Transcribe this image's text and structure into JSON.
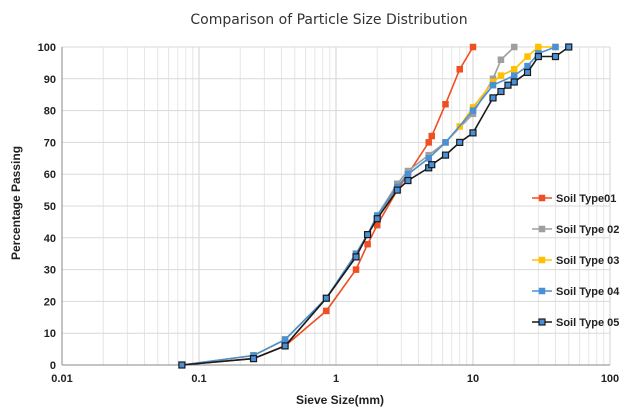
{
  "chart_data": {
    "type": "line",
    "title": "Comparison of Particle Size Distribution",
    "xlabel": "Sieve Size(mm)",
    "ylabel": "Percentage Passing",
    "x_scale": "log",
    "xlim": [
      0.01,
      100
    ],
    "ylim": [
      0,
      100
    ],
    "x_ticks": [
      "0.01",
      "0.1",
      "1",
      "10",
      "100"
    ],
    "y_ticks": [
      "0",
      "10",
      "20",
      "30",
      "40",
      "50",
      "60",
      "70",
      "80",
      "90",
      "100"
    ],
    "grid": true,
    "legend_position": "right",
    "series": [
      {
        "name": "Soil Type01",
        "color": "#f04e23",
        "marker": "square",
        "x": [
          0.075,
          0.25,
          0.425,
          0.85,
          1.4,
          1.7,
          2.0,
          2.8,
          3.35,
          4.75,
          5.0,
          6.3,
          8.0,
          10.0
        ],
        "y": [
          0,
          2,
          6,
          17,
          30,
          38,
          44,
          55,
          60,
          70,
          72,
          82,
          93,
          100
        ]
      },
      {
        "name": "Soil Type 02",
        "color": "#9e9e9e",
        "marker": "square",
        "x": [
          0.075,
          0.25,
          0.425,
          0.85,
          1.4,
          1.7,
          2.0,
          2.8,
          3.35,
          4.75,
          6.3,
          10.0,
          14.0,
          16.0,
          20.0
        ],
        "y": [
          0,
          3,
          8,
          21,
          35,
          41,
          47,
          57,
          61,
          66,
          70,
          79,
          90,
          96,
          100
        ]
      },
      {
        "name": "Soil Type 03",
        "color": "#ffc000",
        "marker": "square",
        "x": [
          0.075,
          0.25,
          0.425,
          0.85,
          1.4,
          1.7,
          2.0,
          2.8,
          3.35,
          4.75,
          6.3,
          8.0,
          10.0,
          14.0,
          16.0,
          20.0,
          25.0,
          30.0,
          40.0
        ],
        "y": [
          0,
          3,
          8,
          21,
          35,
          41,
          46,
          56,
          60,
          65,
          70,
          75,
          81,
          89,
          91,
          93,
          97,
          100,
          100
        ]
      },
      {
        "name": "Soil Type 04",
        "color": "#4a90d9",
        "marker": "square",
        "x": [
          0.075,
          0.25,
          0.425,
          0.85,
          1.4,
          1.7,
          2.0,
          2.8,
          3.35,
          4.75,
          6.3,
          10.0,
          14.0,
          20.0,
          25.0,
          30.0,
          40.0
        ],
        "y": [
          0,
          3,
          8,
          21,
          35,
          41,
          47,
          56,
          60,
          65,
          70,
          80,
          88,
          91,
          94,
          98,
          100
        ]
      },
      {
        "name": "Soil Type 05",
        "color": "#1a1a1a",
        "fill": "#4a90d9",
        "marker": "square",
        "x": [
          0.075,
          0.25,
          0.425,
          0.85,
          1.4,
          1.7,
          2.0,
          2.8,
          3.35,
          4.75,
          5.0,
          6.3,
          8.0,
          10.0,
          14.0,
          16.0,
          18.0,
          20.0,
          25.0,
          30.0,
          40.0,
          50.0
        ],
        "y": [
          0,
          2,
          6,
          21,
          34,
          41,
          46,
          55,
          58,
          62,
          63,
          66,
          70,
          73,
          84,
          86,
          88,
          89,
          92,
          97,
          97,
          100
        ]
      }
    ]
  }
}
